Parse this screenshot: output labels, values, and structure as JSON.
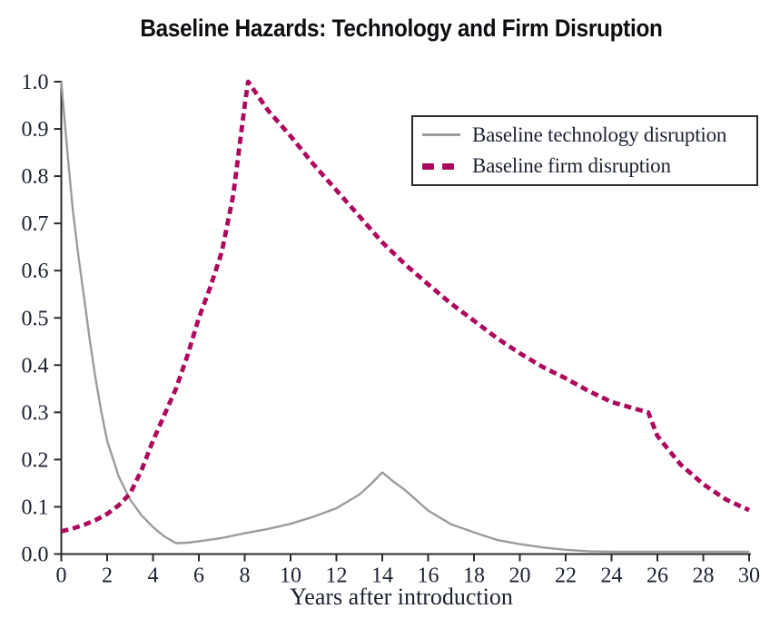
{
  "title": "Baseline Hazards: Technology and Firm Disruption",
  "colors": {
    "technology": "#9C9C9C",
    "firm": "#AC085C",
    "axis": "#2A2A2A",
    "tick_text": "#1C2231",
    "title_text": "#0D0D12",
    "legend_border": "#2B2B2B",
    "background": "#FFFFFF"
  },
  "legend": {
    "items": [
      {
        "label": "Baseline technology disruption",
        "series": "technology",
        "line_style": "solid"
      },
      {
        "label": "Baseline firm disruption",
        "series": "firm",
        "line_style": "dashed"
      }
    ]
  },
  "chart_data": {
    "type": "line",
    "title": "Baseline Hazards: Technology and Firm Disruption",
    "xlabel": "Years after introduction",
    "ylabel": "",
    "xlim": [
      0,
      30
    ],
    "ylim": [
      0.0,
      1.0
    ],
    "grid": false,
    "legend_position": "upper-right",
    "x_ticks": [
      0,
      2,
      4,
      6,
      8,
      10,
      12,
      14,
      16,
      18,
      20,
      22,
      24,
      26,
      28,
      30
    ],
    "x_tick_labels": [
      "0",
      "2",
      "4",
      "6",
      "8",
      "10",
      "12",
      "14",
      "16",
      "18",
      "20",
      "22",
      "24",
      "26",
      "28",
      "30"
    ],
    "y_ticks": [
      0,
      0.1,
      0.2,
      0.3,
      0.4,
      0.5,
      0.6,
      0.7,
      0.8,
      0.9,
      1.0
    ],
    "y_tick_labels": [
      "0.0",
      "0.1",
      "0.2",
      "0.3",
      "0.4",
      "0.5",
      "0.6",
      "0.7",
      "0.8",
      "0.9",
      "1.0"
    ],
    "series": [
      {
        "name": "Baseline technology disruption",
        "color": "#9C9C9C",
        "style": "solid",
        "x": [
          0,
          0.25,
          0.5,
          0.75,
          1,
          1.25,
          1.5,
          1.75,
          2,
          2.5,
          3,
          3.5,
          4,
          4.5,
          5,
          5.5,
          6,
          7,
          8,
          9,
          10,
          11,
          12,
          13,
          13.5,
          14,
          14.5,
          15,
          16,
          17,
          18,
          19,
          20,
          21,
          22,
          23,
          24,
          25,
          26,
          27,
          28,
          29,
          30
        ],
        "y": [
          1.0,
          0.86,
          0.73,
          0.63,
          0.54,
          0.45,
          0.37,
          0.3,
          0.24,
          0.165,
          0.115,
          0.082,
          0.057,
          0.037,
          0.023,
          0.024,
          0.027,
          0.034,
          0.044,
          0.053,
          0.064,
          0.079,
          0.097,
          0.126,
          0.148,
          0.173,
          0.153,
          0.135,
          0.092,
          0.063,
          0.046,
          0.03,
          0.021,
          0.014,
          0.009,
          0.006,
          0.005,
          0.005,
          0.005,
          0.005,
          0.005,
          0.005,
          0.005
        ]
      },
      {
        "name": "Baseline firm disruption",
        "color": "#AC085C",
        "style": "dashed",
        "x": [
          0,
          0.5,
          1,
          1.5,
          2,
          2.5,
          3,
          3.5,
          4,
          4.5,
          5,
          5.5,
          6,
          6.5,
          7,
          7.5,
          8,
          8.15,
          9,
          10,
          11,
          12,
          13,
          14,
          15,
          16,
          17,
          18,
          19,
          20,
          21,
          22,
          23,
          24,
          25,
          25.6,
          26,
          27,
          28,
          29,
          30
        ],
        "y": [
          0.048,
          0.054,
          0.062,
          0.072,
          0.085,
          0.103,
          0.128,
          0.178,
          0.24,
          0.295,
          0.35,
          0.42,
          0.5,
          0.565,
          0.64,
          0.76,
          0.95,
          1.0,
          0.94,
          0.885,
          0.825,
          0.77,
          0.715,
          0.66,
          0.613,
          0.571,
          0.53,
          0.494,
          0.457,
          0.425,
          0.396,
          0.372,
          0.345,
          0.322,
          0.308,
          0.3,
          0.25,
          0.19,
          0.148,
          0.115,
          0.093
        ]
      }
    ]
  }
}
